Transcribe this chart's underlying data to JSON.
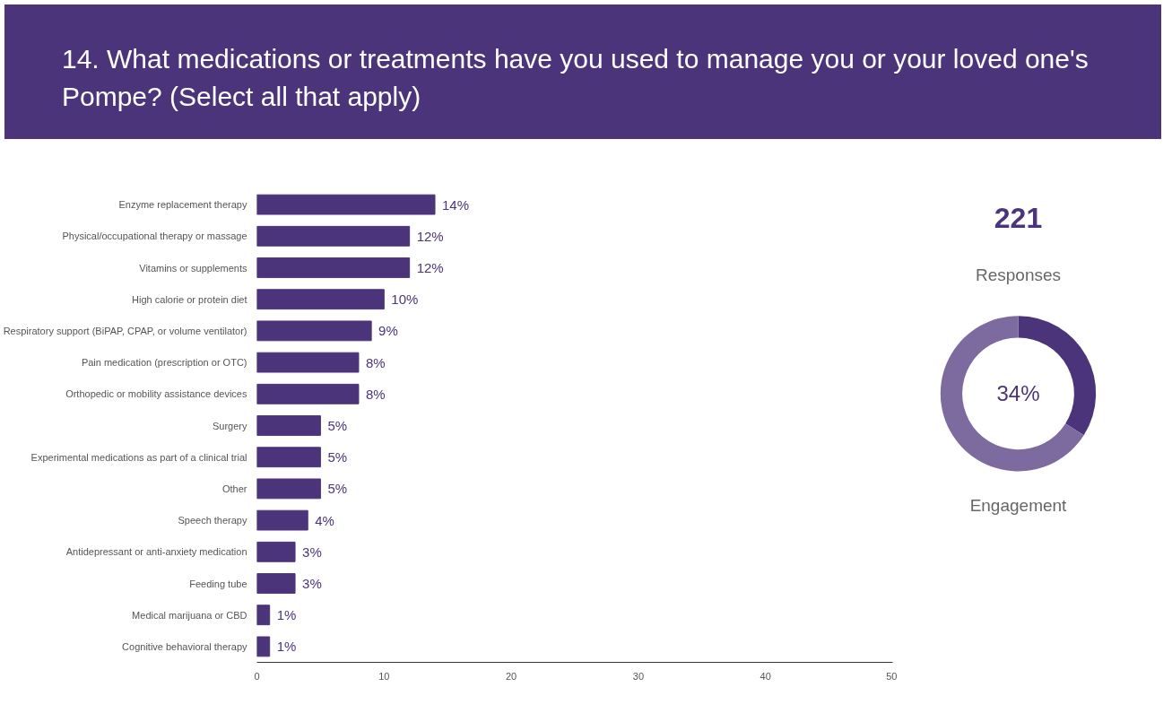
{
  "chart_data": [
    {
      "type": "bar",
      "orientation": "horizontal",
      "title": "14. What medications or treatments have you used to manage you or your loved one's Pompe? (Select all that apply)",
      "categories": [
        "Enzyme replacement therapy",
        "Physical/occupational therapy or massage",
        "Vitamins or supplements",
        "High calorie or protein diet",
        "Respiratory support (BiPAP, CPAP, or volume ventilator)",
        "Pain medication (prescription or OTC)",
        "Orthopedic or mobility assistance devices",
        "Surgery",
        "Experimental medications as part of a clinical trial",
        "Other",
        "Speech therapy",
        "Antidepressant or anti-anxiety medication",
        "Feeding tube",
        "Medical marijuana or CBD",
        "Cognitive behavioral therapy"
      ],
      "values": [
        14,
        12,
        12,
        10,
        9,
        8,
        8,
        5,
        5,
        5,
        4,
        3,
        3,
        1,
        1
      ],
      "value_labels": [
        "14%",
        "12%",
        "12%",
        "10%",
        "9%",
        "8%",
        "8%",
        "5%",
        "5%",
        "5%",
        "4%",
        "3%",
        "3%",
        "1%",
        "1%"
      ],
      "color": "#4b347a",
      "xlim": [
        0,
        50
      ],
      "xticks": [
        0,
        10,
        20,
        30,
        40,
        50
      ],
      "grid": false
    },
    {
      "type": "donut",
      "categories": [
        null,
        null
      ],
      "values": [
        34,
        66
      ],
      "colors": [
        "#4b347a",
        "#7d6a9e"
      ],
      "annotations": [
        "221",
        "Responses",
        "34%",
        "Engagement"
      ]
    }
  ]
}
